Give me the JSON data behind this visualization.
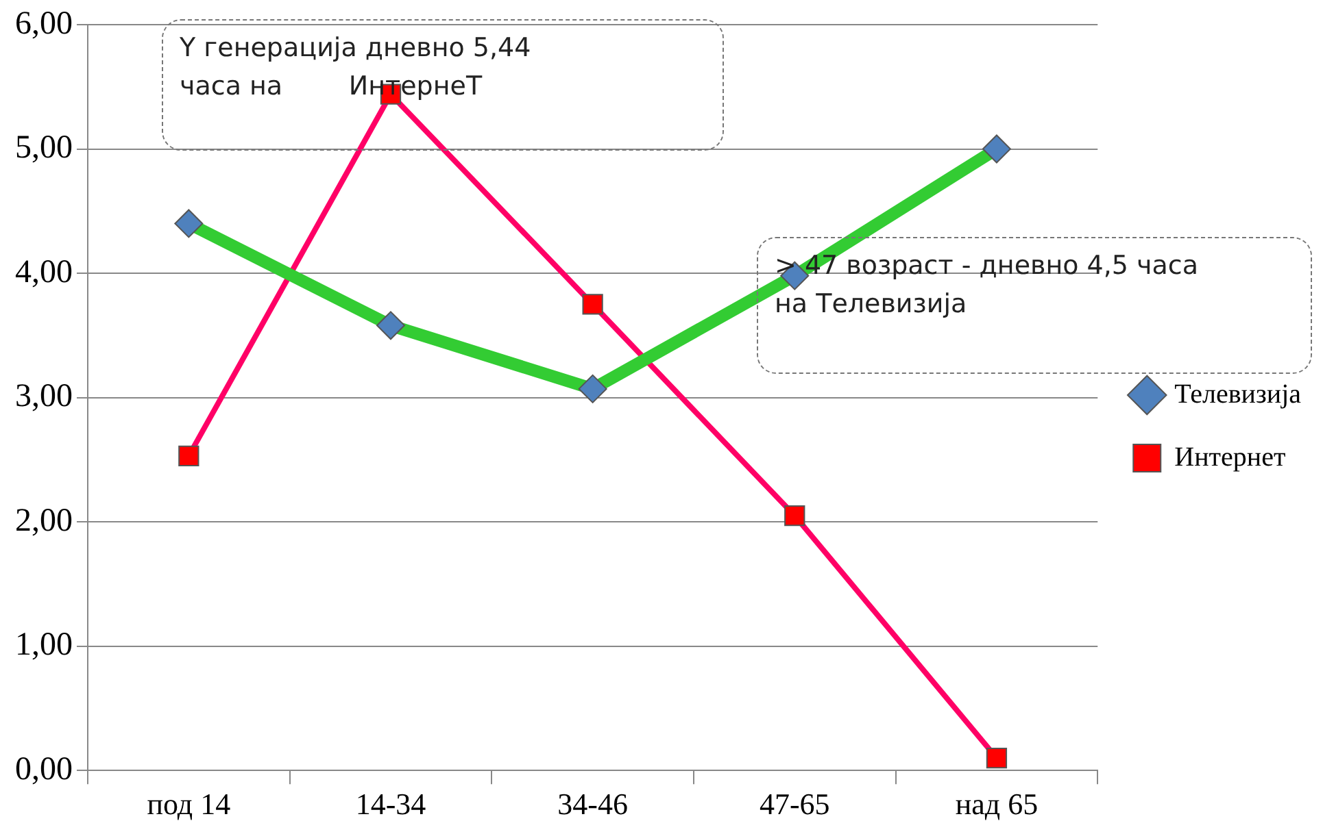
{
  "chart_data": {
    "type": "line",
    "categories": [
      "под 14",
      "14-34",
      "34-46",
      "47-65",
      "над 65"
    ],
    "series": [
      {
        "name": "Телевизија",
        "color": "#33cc33",
        "colors": [
          "#4f81bd",
          "#4f81bd",
          "#4f81bd",
          "#4f81bd",
          "#4f81bd"
        ],
        "marker": "diamond",
        "values": [
          4.4,
          3.58,
          3.07,
          3.98,
          5.0
        ]
      },
      {
        "name": "Интернет",
        "color": "#ff0066",
        "colors": [
          "#ff0000",
          "#ff0000",
          "#ff0000",
          "#ff0000",
          "#ff0000"
        ],
        "marker": "square",
        "values": [
          2.53,
          5.44,
          3.75,
          2.05,
          0.1
        ]
      }
    ],
    "ylim": [
      0,
      6
    ],
    "yticks": [
      {
        "value": 0,
        "label": "0,00"
      },
      {
        "value": 1,
        "label": "1,00"
      },
      {
        "value": 2,
        "label": "2,00"
      },
      {
        "value": 3,
        "label": "3,00"
      },
      {
        "value": 4,
        "label": "4,00"
      },
      {
        "value": 5,
        "label": "5,00"
      },
      {
        "value": 6,
        "label": "6,00"
      }
    ],
    "grid": "y",
    "legend": "right",
    "line_style": "solid",
    "annotations": [
      "Y генерација дневно 5,44\nчаса на        ИнтернеТ",
      "> 47 возраст - дневно 4,5 часа\nна Телевизија"
    ]
  }
}
